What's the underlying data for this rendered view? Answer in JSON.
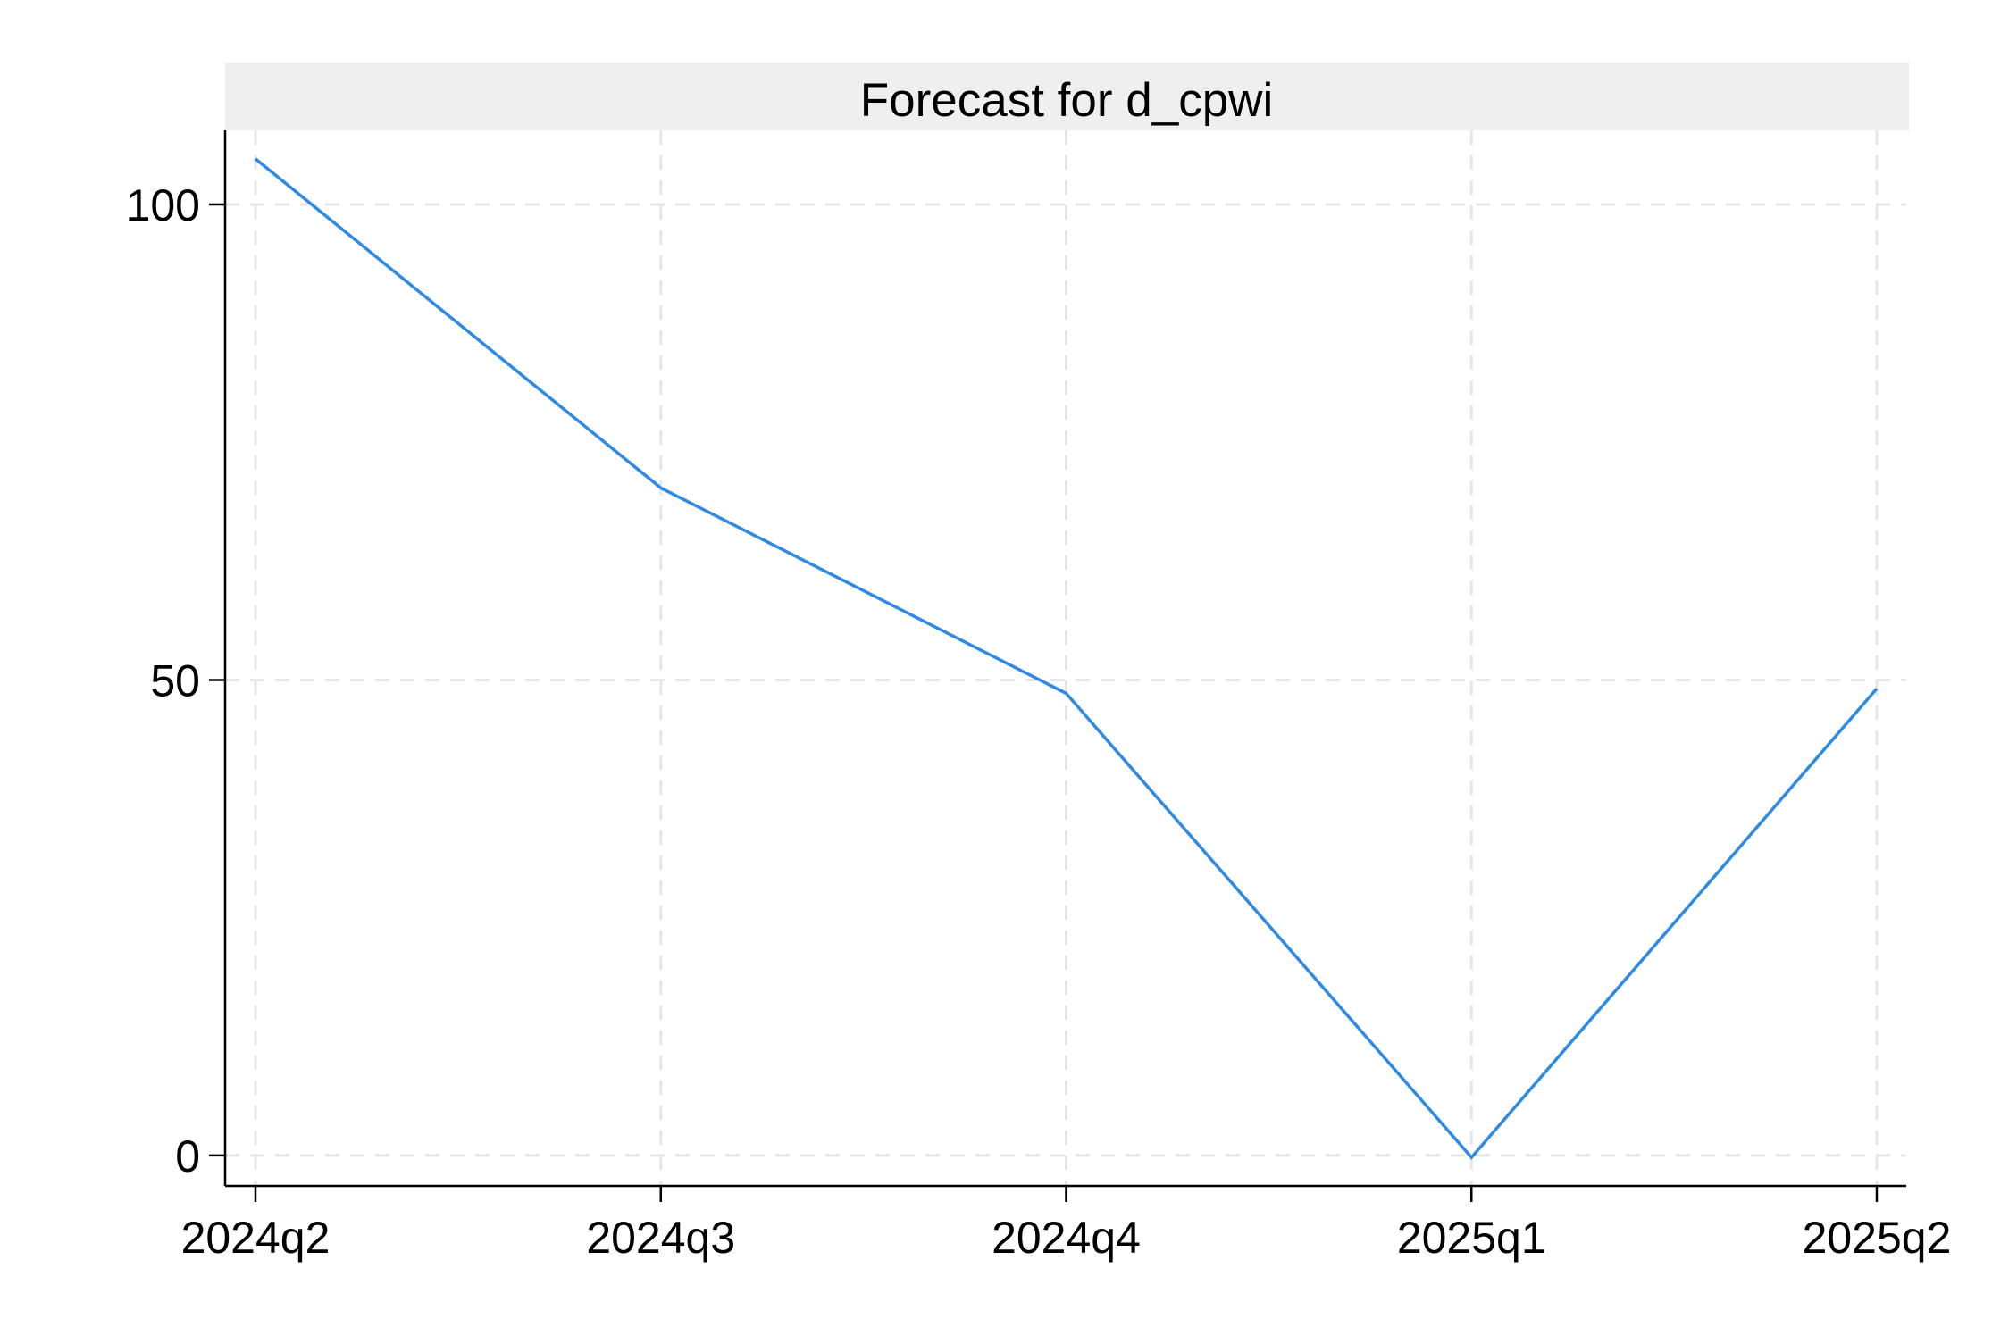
{
  "chart_data": {
    "type": "line",
    "title": "Forecast for d_cpwi",
    "xlabel": "",
    "ylabel": "",
    "categories": [
      "2024q2",
      "2024q3",
      "2024q4",
      "2025q1",
      "2025q2"
    ],
    "series": [
      {
        "values": [
          104.8,
          70.2,
          48.6,
          -0.2,
          49.1
        ]
      }
    ],
    "ylim": [
      -3.2,
      107.8
    ],
    "yticks": [
      0,
      50,
      100
    ],
    "ytick_labels": [
      "0",
      "50",
      "100"
    ],
    "grid": true,
    "legend": "none",
    "colors": {
      "line": "#2e8ae6",
      "grid": "#e6e6e6",
      "title_band": "#efefef",
      "axis": "#000000"
    }
  }
}
